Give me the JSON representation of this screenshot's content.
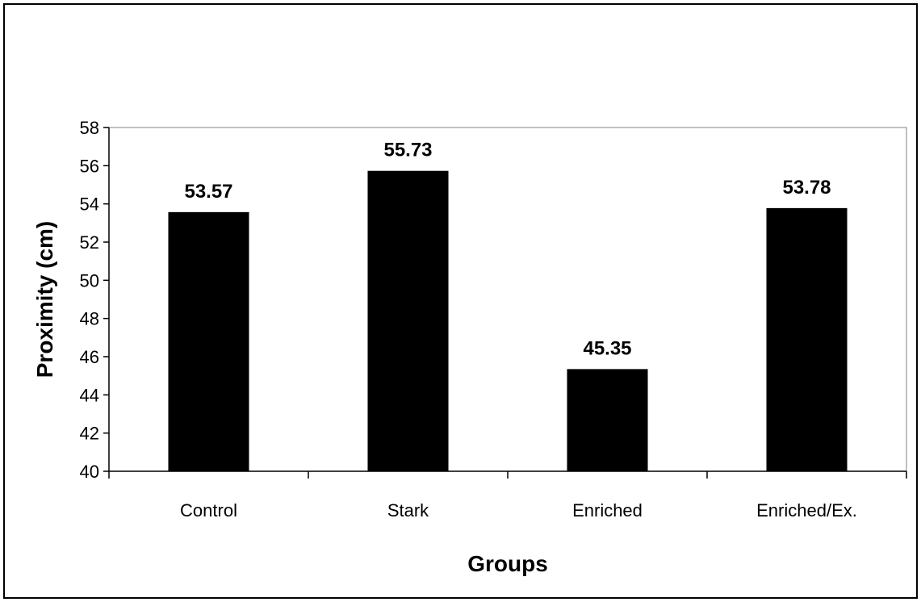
{
  "chart_data": {
    "type": "bar",
    "categories": [
      "Control",
      "Stark",
      "Enriched",
      "Enriched/Ex."
    ],
    "values": [
      53.57,
      55.73,
      45.35,
      53.78
    ],
    "data_labels": [
      "53.57",
      "55.73",
      "45.35",
      "53.78"
    ],
    "title": "",
    "xlabel": "Groups",
    "ylabel": "Proximity (cm)",
    "ylim": [
      40,
      58
    ],
    "yticks": [
      40,
      42,
      44,
      46,
      48,
      50,
      52,
      54,
      56,
      58
    ],
    "grid": false,
    "legend": "none",
    "bar_color": "#000000",
    "axis_color": "#000000",
    "plot_border_color": "#808080"
  }
}
